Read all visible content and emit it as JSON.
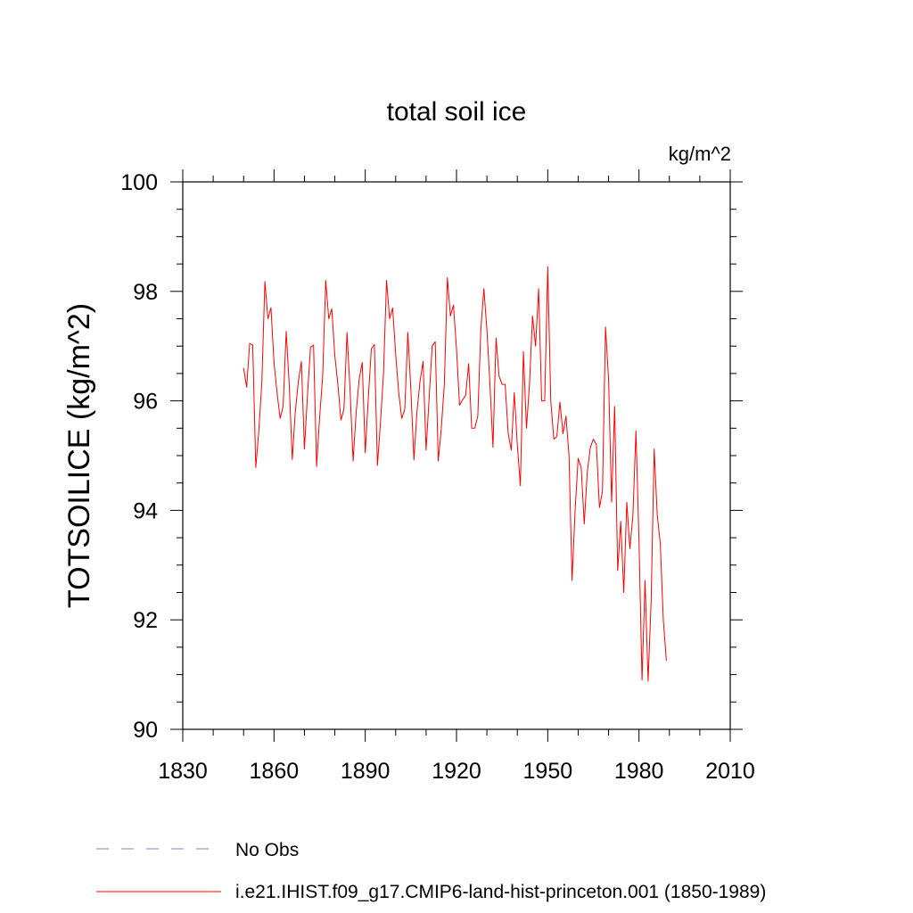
{
  "chart_data": {
    "type": "line",
    "title": "total soil ice",
    "units": "kg/m^2",
    "xlabel": "",
    "ylabel": "TOTSOILICE  (kg/m^2)",
    "xlim": [
      1830,
      2010
    ],
    "ylim": [
      90,
      100
    ],
    "xticks": [
      1830,
      1860,
      1890,
      1920,
      1950,
      1980,
      2010
    ],
    "yticks": [
      90,
      92,
      94,
      96,
      98,
      100
    ],
    "grid": false,
    "legend_position": "bottom-left",
    "series": [
      {
        "name": "i.e21.IHIST.f09_g17.CMIP6-land-hist-princeton.001 (1850-1989)",
        "color": "#ff0000",
        "x": [
          1850,
          1851,
          1852,
          1853,
          1854,
          1855,
          1856,
          1857,
          1858,
          1859,
          1860,
          1861,
          1862,
          1863,
          1864,
          1865,
          1866,
          1867,
          1868,
          1869,
          1870,
          1871,
          1872,
          1873,
          1874,
          1875,
          1876,
          1877,
          1878,
          1879,
          1880,
          1881,
          1882,
          1883,
          1884,
          1885,
          1886,
          1887,
          1888,
          1889,
          1890,
          1891,
          1892,
          1893,
          1894,
          1895,
          1896,
          1897,
          1898,
          1899,
          1900,
          1901,
          1902,
          1903,
          1904,
          1905,
          1906,
          1907,
          1908,
          1909,
          1910,
          1911,
          1912,
          1913,
          1914,
          1915,
          1916,
          1917,
          1918,
          1919,
          1920,
          1921,
          1922,
          1923,
          1924,
          1925,
          1926,
          1927,
          1928,
          1929,
          1930,
          1931,
          1932,
          1933,
          1934,
          1935,
          1936,
          1937,
          1938,
          1939,
          1940,
          1941,
          1942,
          1943,
          1944,
          1945,
          1946,
          1947,
          1948,
          1949,
          1950,
          1951,
          1952,
          1953,
          1954,
          1955,
          1956,
          1957,
          1958,
          1959,
          1960,
          1961,
          1962,
          1963,
          1964,
          1965,
          1966,
          1967,
          1968,
          1969,
          1970,
          1971,
          1972,
          1973,
          1974,
          1975,
          1976,
          1977,
          1978,
          1979,
          1980,
          1981,
          1982,
          1983,
          1984,
          1985,
          1986,
          1987,
          1988,
          1989
        ],
        "values": [
          96.6,
          96.25,
          97.05,
          97.02,
          94.78,
          95.45,
          96.35,
          98.18,
          97.5,
          97.7,
          96.7,
          96.15,
          95.68,
          95.9,
          97.27,
          96.3,
          94.93,
          95.8,
          96.35,
          96.72,
          95.12,
          96.1,
          96.98,
          97.02,
          94.8,
          95.7,
          96.45,
          98.2,
          97.5,
          97.68,
          96.82,
          96.3,
          95.65,
          95.85,
          97.25,
          96.2,
          94.9,
          95.78,
          96.4,
          96.7,
          95.05,
          96.05,
          96.95,
          97.03,
          94.82,
          95.6,
          96.5,
          98.2,
          97.5,
          97.7,
          96.85,
          96.15,
          95.68,
          95.85,
          97.25,
          96.2,
          94.92,
          95.8,
          96.35,
          96.72,
          95.1,
          96.05,
          97.0,
          97.08,
          94.9,
          95.5,
          96.3,
          98.25,
          97.55,
          97.75,
          96.95,
          95.92,
          96.02,
          96.1,
          96.68,
          95.5,
          95.5,
          95.72,
          97.3,
          98.05,
          97.3,
          96.3,
          95.15,
          97.15,
          96.45,
          96.3,
          96.3,
          95.4,
          95.1,
          96.15,
          95.2,
          94.45,
          96.9,
          95.5,
          96.3,
          97.55,
          97.0,
          98.05,
          96.0,
          96.0,
          98.45,
          96.0,
          95.3,
          95.35,
          95.98,
          95.4,
          95.72,
          95.0,
          92.72,
          94.0,
          94.95,
          94.78,
          93.75,
          94.7,
          95.15,
          95.3,
          95.2,
          94.05,
          94.35,
          97.35,
          96.4,
          94.15,
          95.9,
          92.9,
          93.8,
          92.5,
          94.15,
          93.3,
          93.9,
          95.45,
          93.45,
          90.9,
          92.72,
          90.88,
          92.35,
          95.12,
          93.92,
          93.4,
          92.0,
          91.25
        ]
      }
    ],
    "legend": [
      {
        "label": "No Obs",
        "color": "#8080c0",
        "style": "dashed"
      },
      {
        "label": "i.e21.IHIST.f09_g17.CMIP6-land-hist-princeton.001 (1850-1989)",
        "color": "#ff0000",
        "style": "solid"
      }
    ]
  }
}
